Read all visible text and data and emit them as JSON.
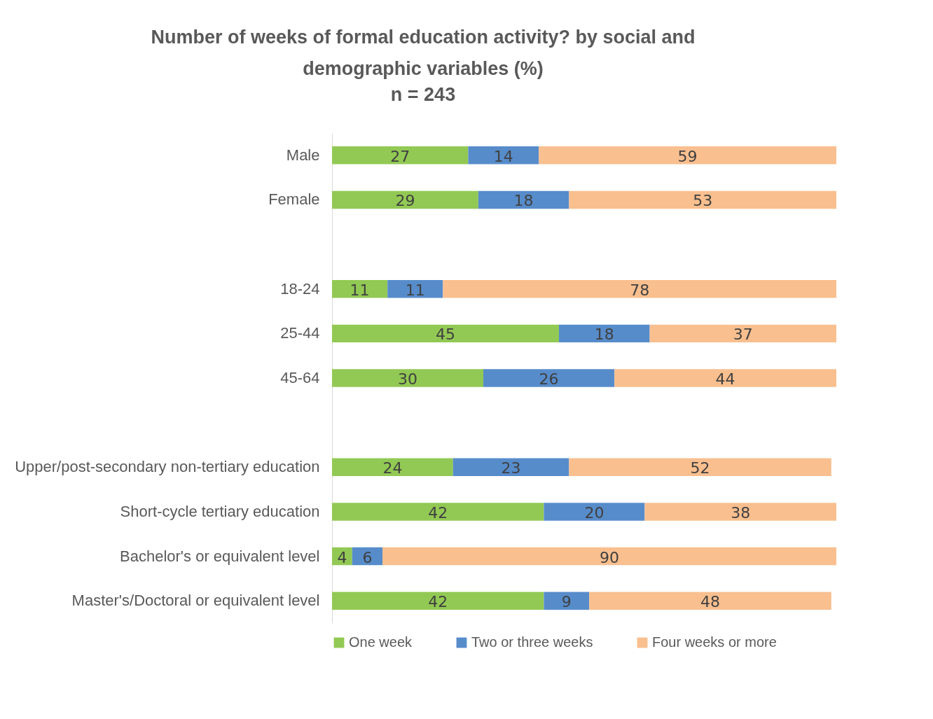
{
  "chart_data": {
    "type": "bar",
    "orientation": "horizontal",
    "stacked": true,
    "data_labels": true,
    "legend": "bottom",
    "grid": false,
    "title": "Number of weeks of formal education activity? by social and demographic variables (%)",
    "subtitle": "n = 243",
    "categories": [
      "Male",
      "Female",
      null,
      "18-24",
      "25-44",
      "45-64",
      null,
      "Upper/post-secondary non-tertiary education",
      "Short-cycle tertiary education",
      "Bachelor's or equivalent level",
      "Master's/Doctoral or equivalent level"
    ],
    "series": [
      {
        "name": "One week",
        "color": "#92c954",
        "values": [
          27,
          29,
          null,
          11,
          45,
          30,
          null,
          24,
          42,
          4,
          42
        ]
      },
      {
        "name": "Two or three weeks",
        "color": "#578ccb",
        "values": [
          14,
          18,
          null,
          11,
          18,
          26,
          null,
          23,
          20,
          6,
          9
        ]
      },
      {
        "name": "Four weeks or more",
        "color": "#f9bf8f",
        "values": [
          59,
          53,
          null,
          78,
          37,
          44,
          null,
          52,
          38,
          90,
          48
        ]
      }
    ]
  }
}
